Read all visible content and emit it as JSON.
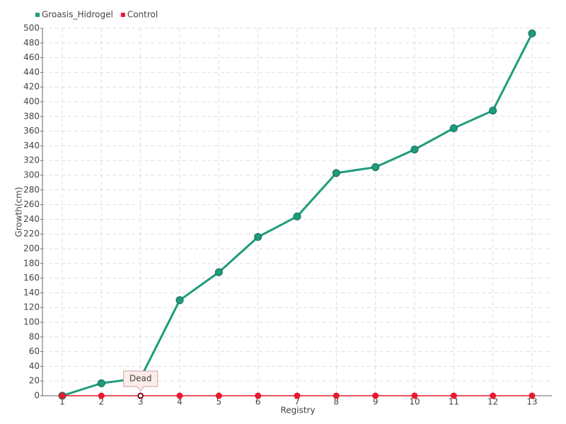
{
  "chart_data": {
    "type": "line",
    "x_label": "Registry",
    "y_label": "Growth(cm)",
    "categories": [
      "1",
      "2",
      "3",
      "4",
      "5",
      "6",
      "7",
      "8",
      "9",
      "10",
      "11",
      "12",
      "13"
    ],
    "series": [
      {
        "name": "Groasis_Hidrogel",
        "color": "#1e9c7c",
        "values": [
          0,
          17,
          24,
          130,
          168,
          216,
          244,
          303,
          311,
          335,
          364,
          388,
          493
        ]
      },
      {
        "name": "Control",
        "color": "#e8192c",
        "values": [
          0,
          0,
          0,
          0,
          0,
          0,
          0,
          0,
          0,
          0,
          0,
          0,
          0
        ]
      }
    ],
    "annotation": "Dead",
    "ylim": [
      0,
      500
    ],
    "yticks": [
      0,
      20,
      40,
      60,
      80,
      100,
      120,
      140,
      160,
      180,
      200,
      220,
      240,
      260,
      280,
      300,
      320,
      340,
      360,
      380,
      400,
      420,
      440,
      460,
      480,
      500
    ],
    "grid": true,
    "legend": "top-left"
  }
}
